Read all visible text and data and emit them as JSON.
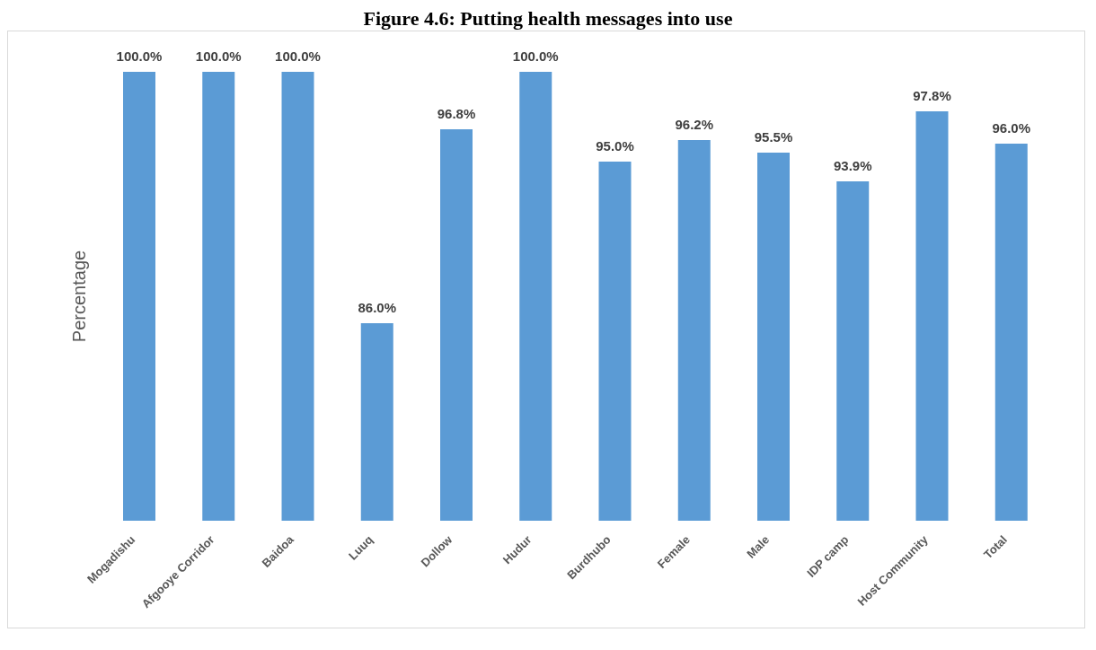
{
  "chart_data": {
    "type": "bar",
    "title": "Figure 4.6: Putting health messages into use",
    "ylabel": "Percentage",
    "categories": [
      "Mogadishu",
      "Afgooye Corridor",
      "Baidoa",
      "Luuq",
      "Dollow",
      "Hudur",
      "Burdhubo",
      "Female",
      "Male",
      "IDP camp",
      "Host Community",
      "Total"
    ],
    "values": [
      100,
      100,
      100,
      86,
      96.8,
      100,
      95,
      96.2,
      95.5,
      93.9,
      97.8,
      96
    ],
    "value_labels": [
      "100.0%",
      "100.0%",
      "100.0%",
      "86.0%",
      "96.8%",
      "100.0%",
      "95.0%",
      "96.2%",
      "95.5%",
      "93.9%",
      "97.8%",
      "96.0%"
    ],
    "color": "#5b9bd5",
    "ylim": [
      75,
      100
    ],
    "tick_labels": "x"
  }
}
